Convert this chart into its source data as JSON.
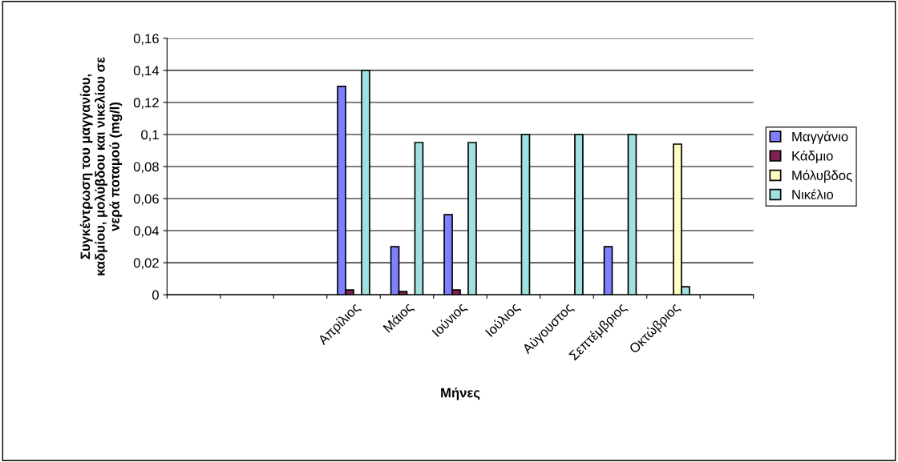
{
  "chart_data": {
    "type": "bar",
    "xlabel": "Μήνες",
    "ylabel": "Συγκέντρωση του μαγγανίου,\nκαδμίου, μολύβδου και νικελίου σε\nνερά ποταμού (mg/l)",
    "categories": [
      null,
      null,
      null,
      "Απρίλιος",
      "Μάιος",
      "Ιούνιος",
      "Ιούλιος",
      "Αύγουστος",
      "Σεπτέμβριος",
      "Οκτώβριος",
      null
    ],
    "series": [
      {
        "name": "Μαγγάνιο",
        "color": "#8080ff",
        "values": [
          null,
          null,
          null,
          0.13,
          0.03,
          0.05,
          null,
          null,
          0.03,
          null,
          null
        ]
      },
      {
        "name": "Κάδμιο",
        "color": "#802050",
        "values": [
          null,
          null,
          null,
          0.003,
          0.002,
          0.003,
          null,
          null,
          null,
          null,
          null
        ]
      },
      {
        "name": "Μόλυβδος",
        "color": "#ffffc0",
        "values": [
          null,
          null,
          null,
          null,
          null,
          null,
          null,
          null,
          null,
          0.094,
          null
        ]
      },
      {
        "name": "Νικέλιο",
        "color": "#a0e0e0",
        "values": [
          null,
          null,
          null,
          0.14,
          0.095,
          0.095,
          0.1,
          0.1,
          0.1,
          0.005,
          null
        ]
      }
    ],
    "ylim": [
      0,
      0.16
    ],
    "yticks": [
      0,
      {
        "value": 0.02,
        "label": "0,02"
      },
      {
        "value": 0.04,
        "label": "0,04"
      },
      {
        "value": 0.06,
        "label": "0,06"
      },
      {
        "value": 0.08,
        "label": "0,08"
      },
      {
        "value": 0.1,
        "label": "0,1"
      },
      {
        "value": 0.12,
        "label": "0,12"
      },
      {
        "value": 0.14,
        "label": "0,14"
      },
      {
        "value": 0.16,
        "label": "0,16"
      }
    ],
    "grid": "y",
    "legend": "right"
  }
}
